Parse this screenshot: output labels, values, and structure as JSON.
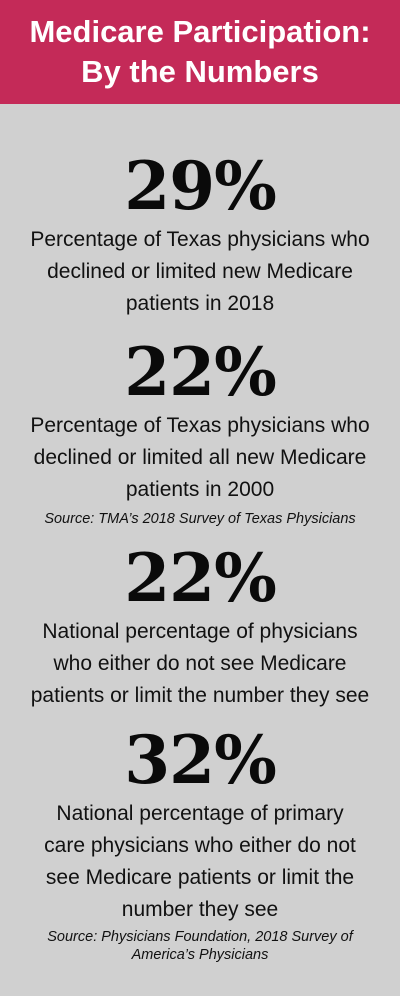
{
  "header": {
    "title_line1": "Medicare Participation:",
    "title_line2": "By the Numbers"
  },
  "stats": [
    {
      "value": "29%",
      "lines": [
        "Percentage of Texas physicians who",
        "declined or limited new Medicare",
        "patients in 2018"
      ]
    },
    {
      "value": "22%",
      "lines": [
        "Percentage of Texas physicians who",
        "declined or limited all new Medicare",
        "patients in 2000"
      ]
    },
    {
      "value": "22%",
      "lines": [
        "National percentage of physicians",
        "who either do not see Medicare",
        "patients or limit the number they see"
      ]
    },
    {
      "value": "32%",
      "lines": [
        "National percentage of primary",
        "care physicians who either do not",
        "see Medicare patients or limit the",
        "number they see"
      ]
    }
  ],
  "sources": {
    "tma": [
      "Source: TMA’s 2018 Survey of Texas Physicians"
    ],
    "pf": [
      "Source: Physicians Foundation, 2018 Survey of",
      "America’s Physicians"
    ]
  },
  "colors": {
    "header_bg": "#c42a58",
    "panel_bg": "#d0d0d0",
    "text": "#111111"
  }
}
